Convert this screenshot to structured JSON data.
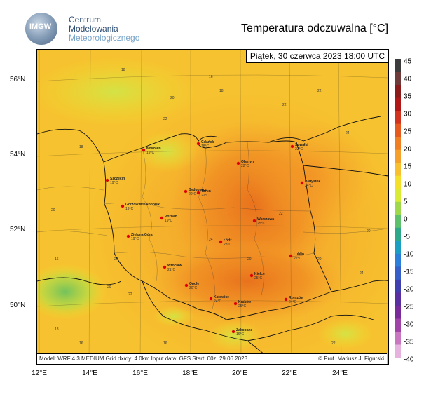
{
  "logo": {
    "imgw": "IMGW",
    "line1": "Centrum",
    "line2": "Modelowania",
    "line3": "Meteorologicznego"
  },
  "title": "Temperatura odczuwalna [°C]",
  "valid_time": "Piątek, 30 czerwca 2023 18:00 UTC",
  "footer": {
    "model": "Model: WRF 4.3 MEDIUM   Grid dx/dy: 4.0km   Input data: GFS   Start: 00z, 29.06.2023",
    "credit": "© Prof. Mariusz J. Figurski"
  },
  "lat_labels": [
    "56°N",
    "54°N",
    "52°N",
    "50°N"
  ],
  "lon_labels": [
    "12°E",
    "14°E",
    "16°E",
    "18°E",
    "20°E",
    "22°E",
    "24°E"
  ],
  "colorbar_labels": [
    "45",
    "40",
    "35",
    "30",
    "25",
    "20",
    "15",
    "10",
    "5",
    "0",
    "-5",
    "-10",
    "-15",
    "-20",
    "-25",
    "-30",
    "-35",
    "-40"
  ],
  "colorbar_colors": [
    "#3c3c3c",
    "#6e3a3a",
    "#8b1a1a",
    "#b01818",
    "#d2331e",
    "#e65a1f",
    "#f07e22",
    "#f5a02a",
    "#f8bf2f",
    "#f4e02a",
    "#d9eb35",
    "#9fd84a",
    "#5cc16a",
    "#2fa88a",
    "#1a9fc3",
    "#2b7fd8",
    "#3660c8",
    "#3f3fb0",
    "#5a2fa0",
    "#7a2b9a",
    "#a044a8",
    "#c977c0",
    "#e6b3de"
  ],
  "cities": [
    {
      "name": "Gdańsk",
      "temp": "18°C"
    },
    {
      "name": "Koszalin",
      "temp": "19°C"
    },
    {
      "name": "Olsztyn",
      "temp": "22°C"
    },
    {
      "name": "Suwałki",
      "temp": "22°C"
    },
    {
      "name": "Szczecin",
      "temp": "19°C"
    },
    {
      "name": "Bydgoszcz",
      "temp": "20°C"
    },
    {
      "name": "Toruń",
      "temp": "22°C"
    },
    {
      "name": "Białystok",
      "temp": "24°C"
    },
    {
      "name": "Gorzów Wielkopolski",
      "temp": "19°C"
    },
    {
      "name": "Poznań",
      "temp": "19°C"
    },
    {
      "name": "Warszawa",
      "temp": "25°C"
    },
    {
      "name": "Łódź",
      "temp": "23°C"
    },
    {
      "name": "Zielona Góra",
      "temp": "19°C"
    },
    {
      "name": "Lublin",
      "temp": "22°C"
    },
    {
      "name": "Wrocław",
      "temp": "21°C"
    },
    {
      "name": "Kielce",
      "temp": "25°C"
    },
    {
      "name": "Opole",
      "temp": "20°C"
    },
    {
      "name": "Katowice",
      "temp": "24°C"
    },
    {
      "name": "Kraków",
      "temp": "25°C"
    },
    {
      "name": "Rzeszów",
      "temp": "24°C"
    },
    {
      "name": "Zakopane",
      "temp": "16°C"
    }
  ],
  "contour_labels": [
    "18",
    "22",
    "20",
    "16",
    "24",
    "20",
    "22",
    "18",
    "20",
    "16",
    "22",
    "24",
    "20",
    "22",
    "18",
    "20",
    "16",
    "22",
    "20",
    "24",
    "22",
    "20",
    "16",
    "18"
  ]
}
